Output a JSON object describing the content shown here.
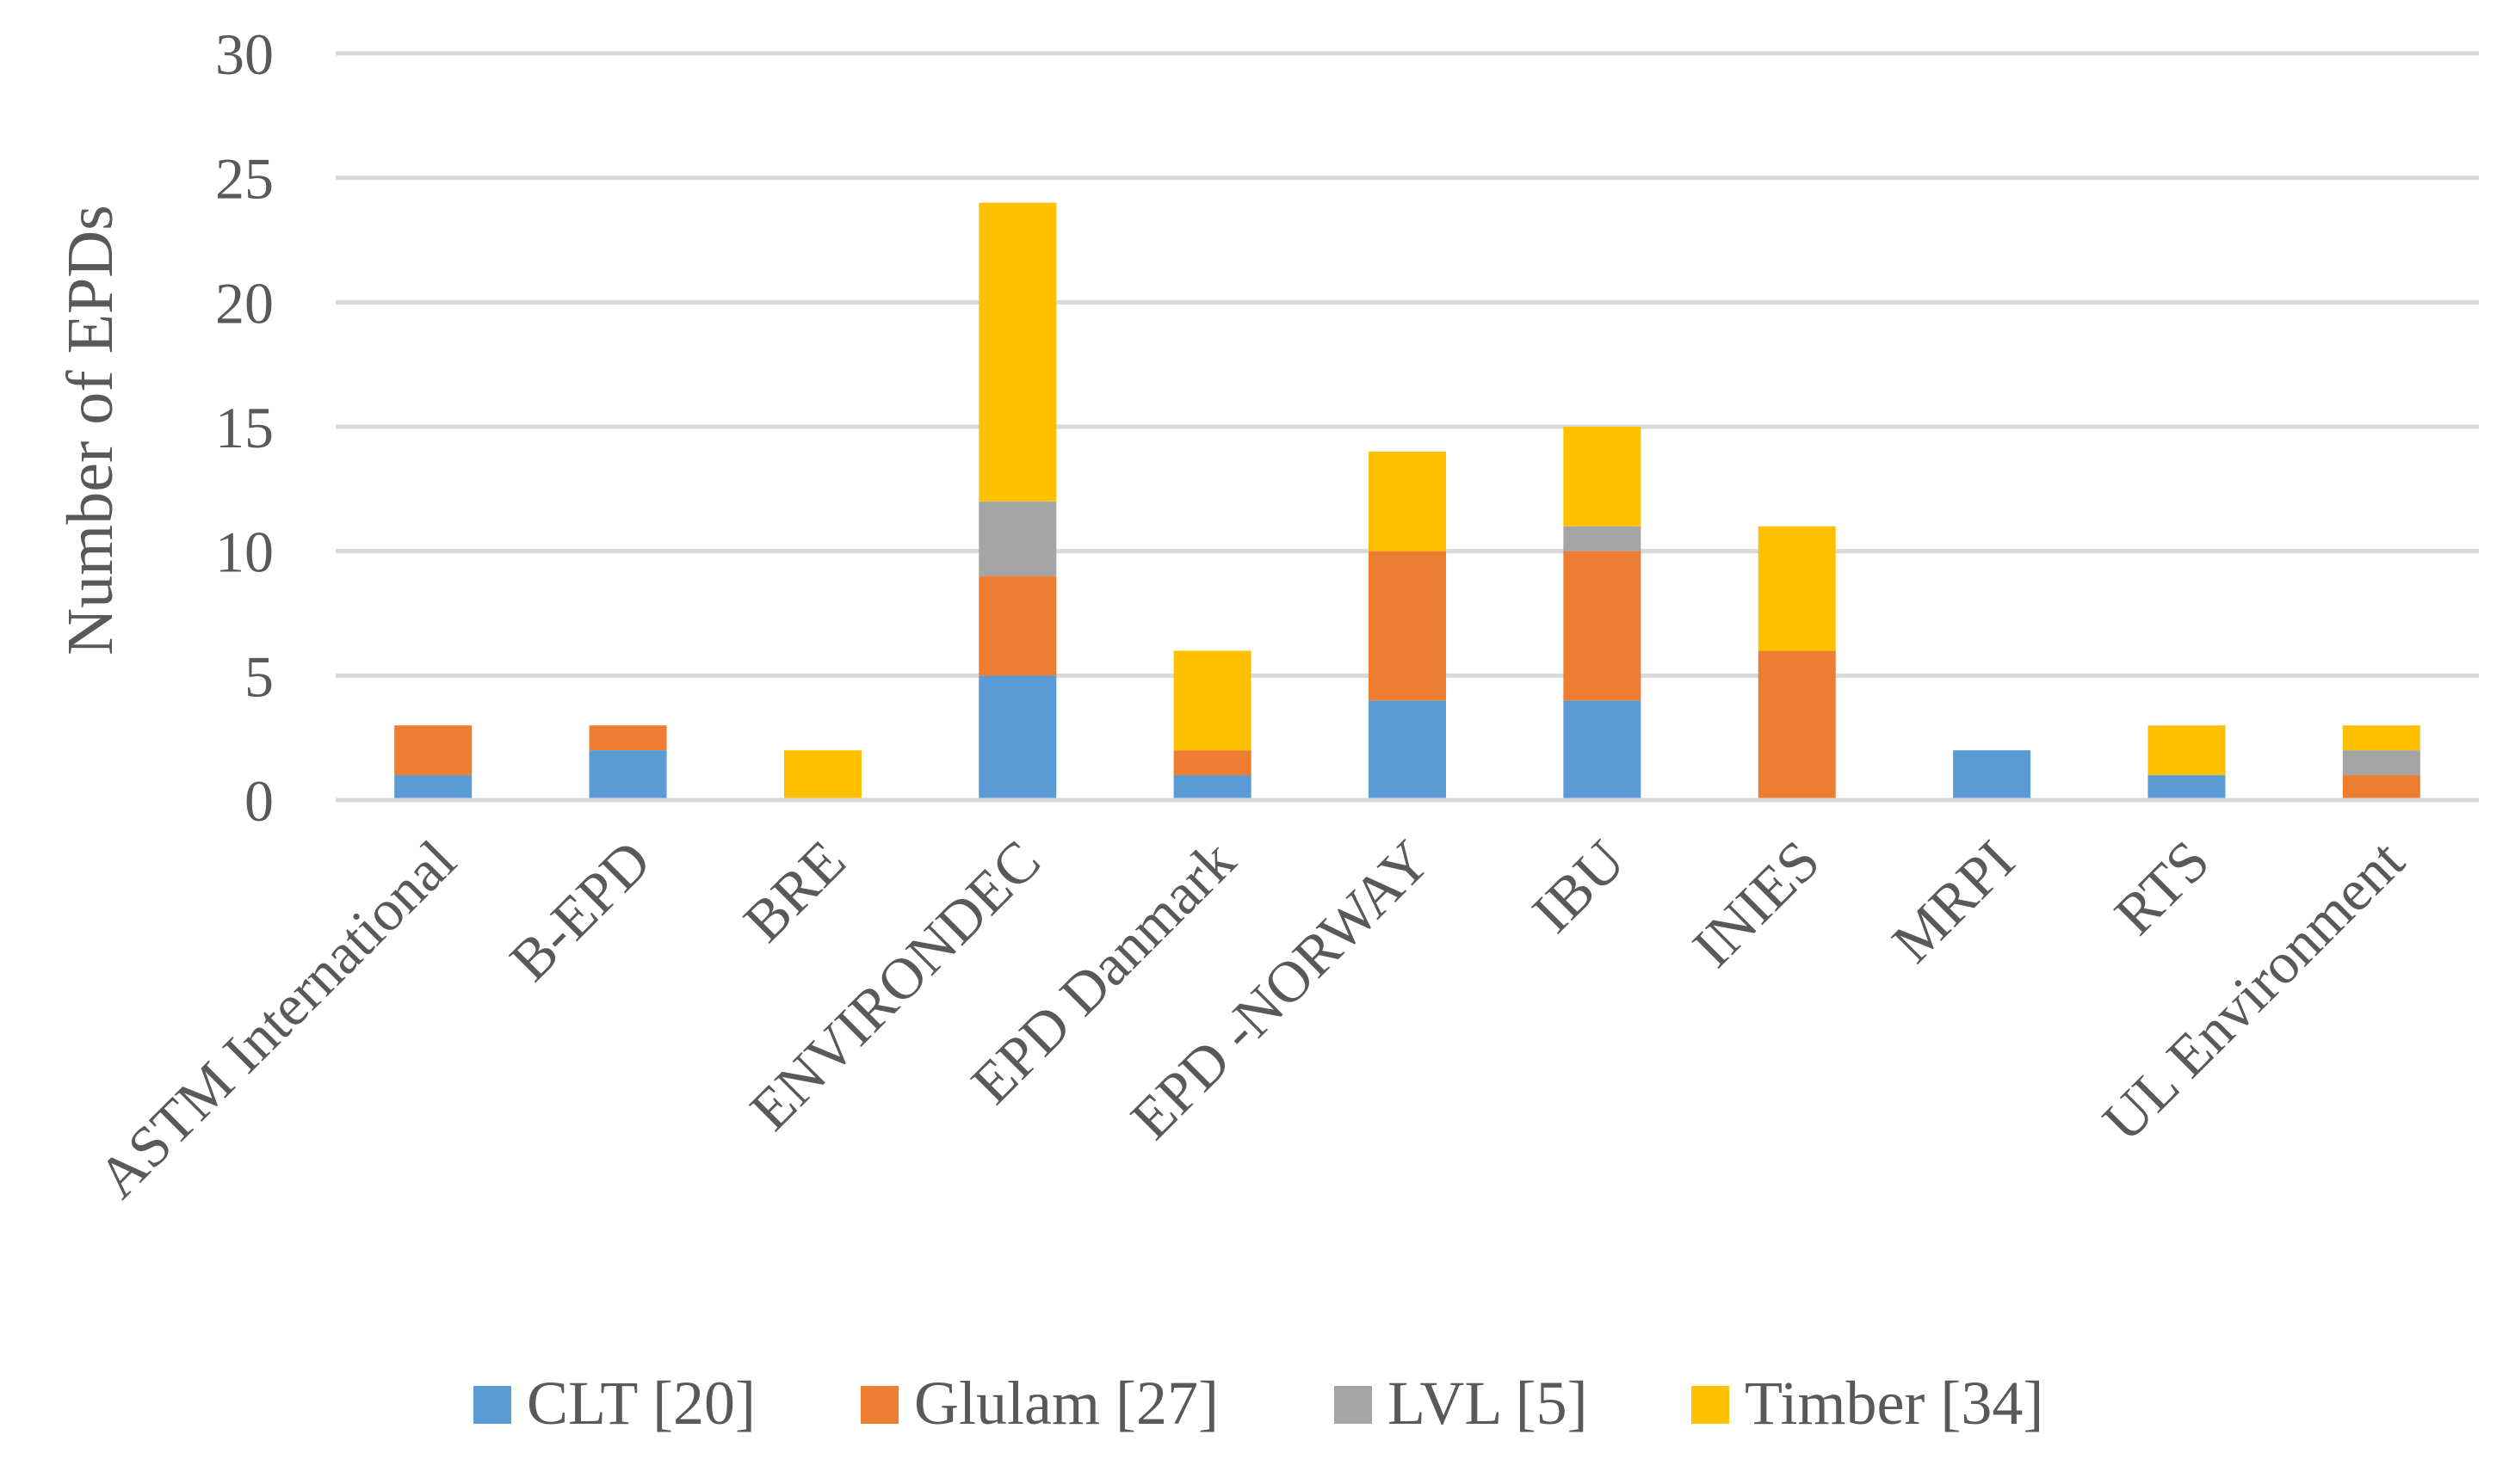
{
  "chart_data": {
    "type": "bar",
    "stacked": true,
    "title": "",
    "xlabel": "",
    "ylabel": "Number of EPDs",
    "ylim": [
      0,
      30
    ],
    "yticks": [
      0,
      5,
      10,
      15,
      20,
      25,
      30
    ],
    "grid": true,
    "legend_position": "bottom",
    "categories": [
      "ASTM International",
      "B-EPD",
      "BRE",
      "ENVIRONDEC",
      "EPD Danmark",
      "EPD -NORWAY",
      "IBU",
      "INIES",
      "MRPI",
      "RTS",
      "UL Environment"
    ],
    "series": [
      {
        "name": "CLT [20]",
        "color": "#5b9bd5",
        "values": [
          1,
          2,
          0,
          5,
          1,
          4,
          4,
          0,
          2,
          1,
          0
        ]
      },
      {
        "name": "Glulam [27]",
        "color": "#ed7d31",
        "values": [
          2,
          1,
          0,
          4,
          1,
          6,
          6,
          6,
          0,
          0,
          1
        ]
      },
      {
        "name": "LVL [5]",
        "color": "#a5a5a5",
        "values": [
          0,
          0,
          0,
          3,
          0,
          0,
          1,
          0,
          0,
          0,
          1
        ]
      },
      {
        "name": "Timber [34]",
        "color": "#ffc000",
        "values": [
          0,
          0,
          2,
          12,
          4,
          4,
          4,
          5,
          0,
          2,
          1
        ]
      }
    ]
  }
}
